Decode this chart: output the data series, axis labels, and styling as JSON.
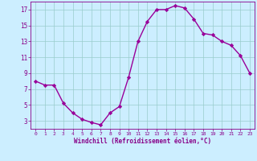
{
  "x": [
    0,
    1,
    2,
    3,
    4,
    5,
    6,
    7,
    8,
    9,
    10,
    11,
    12,
    13,
    14,
    15,
    16,
    17,
    18,
    19,
    20,
    21,
    22,
    23
  ],
  "y": [
    8.0,
    7.5,
    7.5,
    5.2,
    4.0,
    3.2,
    2.8,
    2.5,
    4.0,
    4.8,
    8.5,
    13.0,
    15.5,
    17.0,
    17.0,
    17.5,
    17.2,
    15.8,
    14.0,
    13.8,
    13.0,
    12.5,
    11.2,
    9.0
  ],
  "line_color": "#990099",
  "marker": "D",
  "marker_size": 2.2,
  "bg_color": "#cceeff",
  "grid_color": "#99cccc",
  "xlabel": "Windchill (Refroidissement éolien,°C)",
  "xlim": [
    -0.5,
    23.5
  ],
  "ylim": [
    2.0,
    18.0
  ],
  "yticks": [
    3,
    5,
    7,
    9,
    11,
    13,
    15,
    17
  ],
  "xticks": [
    0,
    1,
    2,
    3,
    4,
    5,
    6,
    7,
    8,
    9,
    10,
    11,
    12,
    13,
    14,
    15,
    16,
    17,
    18,
    19,
    20,
    21,
    22,
    23
  ],
  "font_color": "#880088",
  "line_width": 1.0
}
